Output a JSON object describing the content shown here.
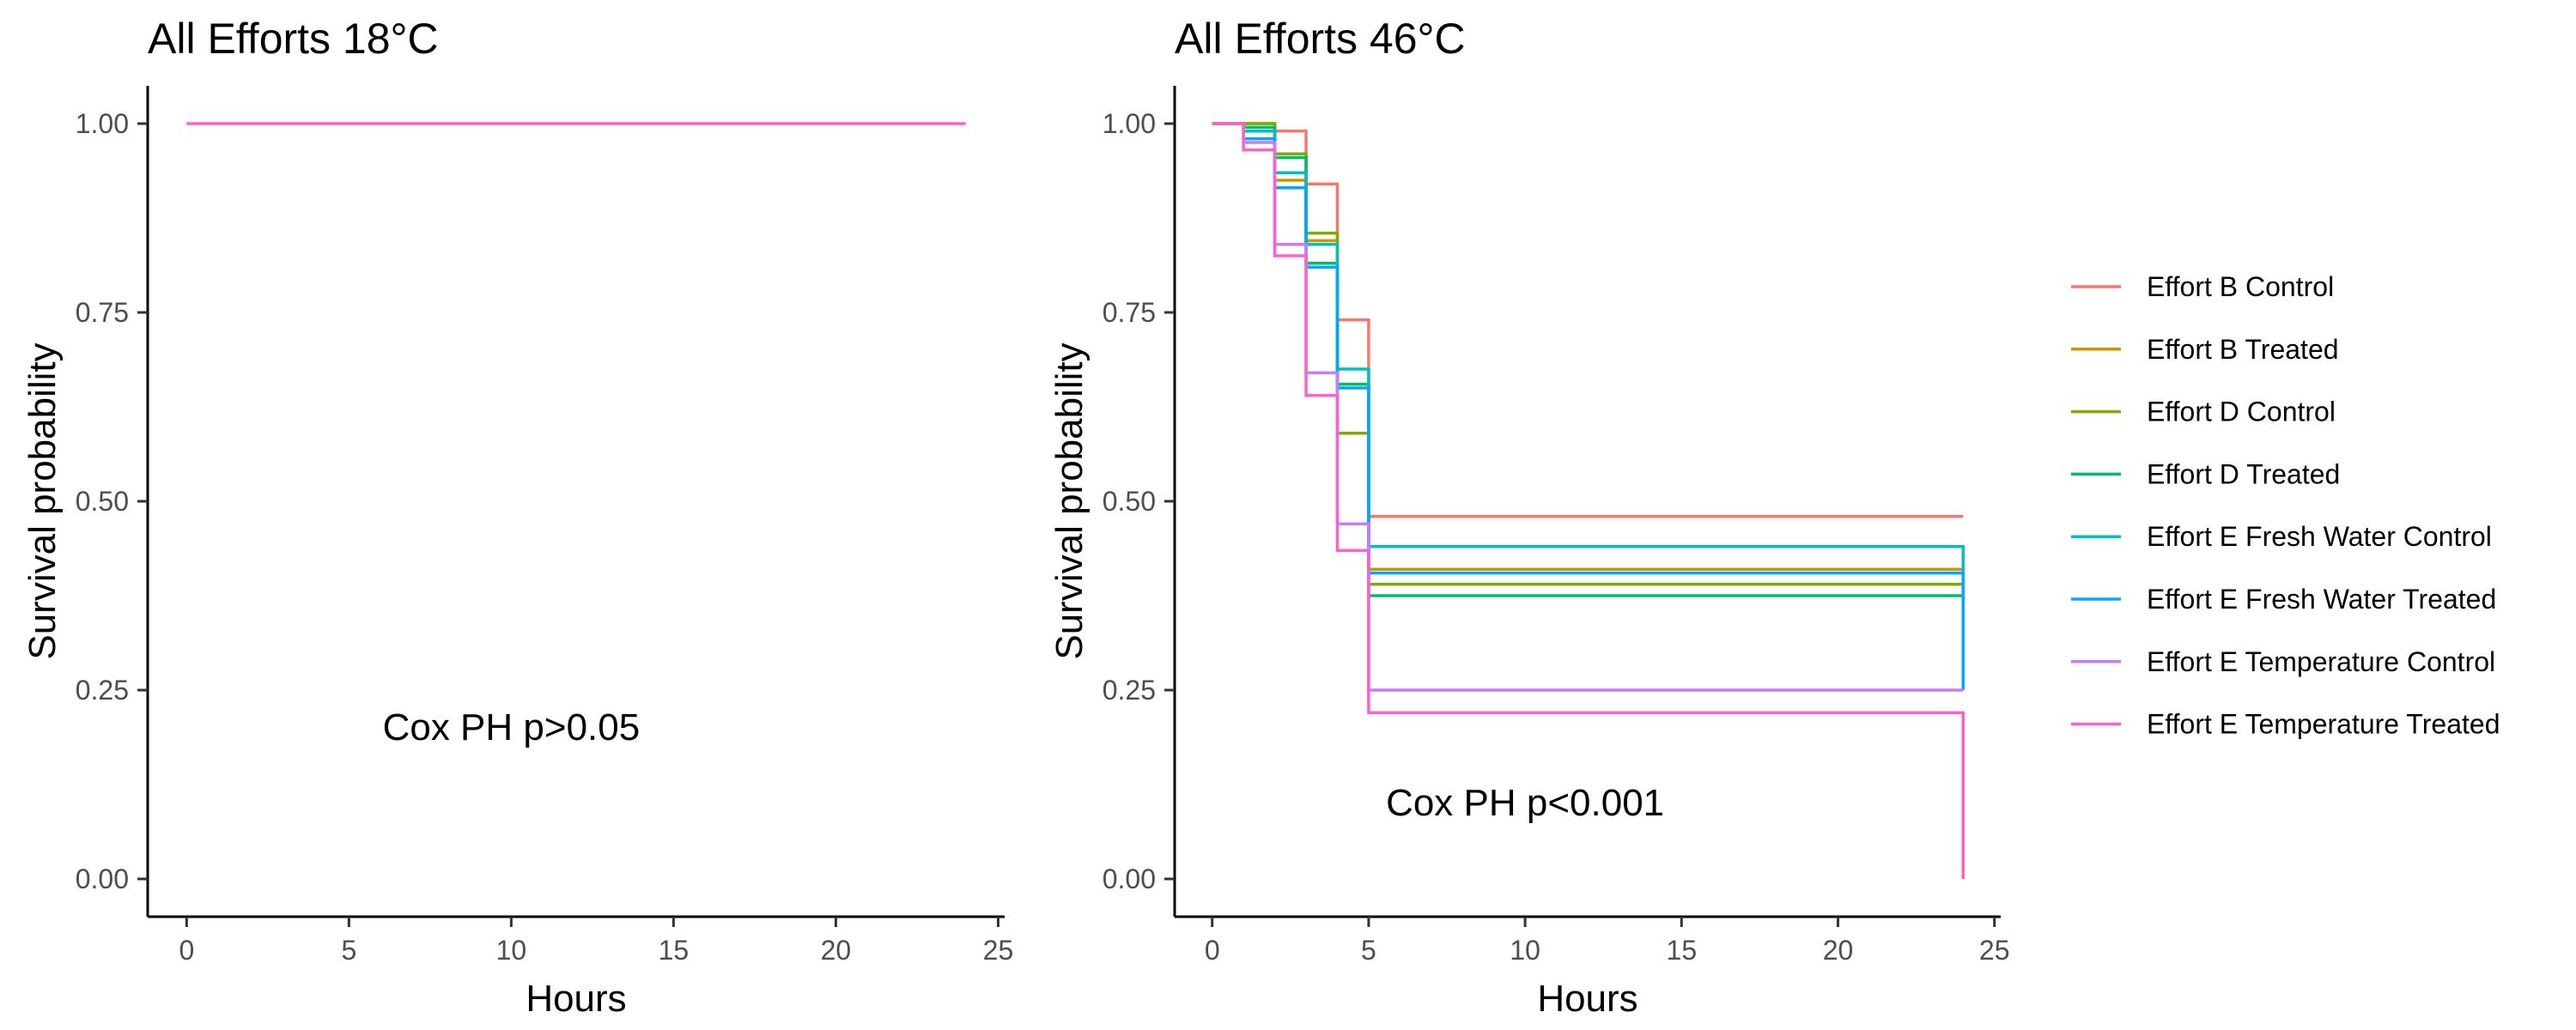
{
  "chart_data": [
    {
      "type": "line",
      "title": "All Efforts 18°C",
      "xlabel": "Hours",
      "ylabel": "Survival probability",
      "xlim": [
        -1.2,
        25.2
      ],
      "ylim": [
        -0.05,
        1.05
      ],
      "x_ticks": [
        0,
        5,
        10,
        15,
        20,
        25
      ],
      "y_ticks": [
        0.0,
        0.25,
        0.5,
        0.75,
        1.0
      ],
      "annotation": "Cox PH p>0.05",
      "annotation_pos": [
        10,
        0.2
      ],
      "grid": false,
      "series": [
        {
          "color": "#FF61CC",
          "x": [
            0,
            24
          ],
          "y": [
            1.0,
            1.0
          ]
        }
      ]
    },
    {
      "type": "line",
      "title": "All Efforts 46°C",
      "xlabel": "Hours",
      "ylabel": "Survival probability",
      "xlim": [
        -1.2,
        25.2
      ],
      "ylim": [
        -0.05,
        1.05
      ],
      "x_ticks": [
        0,
        5,
        10,
        15,
        20,
        25
      ],
      "y_ticks": [
        0.0,
        0.25,
        0.5,
        0.75,
        1.0
      ],
      "annotation": "Cox PH p<0.001",
      "annotation_pos": [
        10,
        0.1
      ],
      "grid": false,
      "legend_position": "right",
      "series": [
        {
          "name": "Effort B Control",
          "color": "#F8766D",
          "x": [
            0,
            1,
            2,
            3,
            4,
            5,
            24
          ],
          "y": [
            1.0,
            1.0,
            0.99,
            0.92,
            0.74,
            0.48,
            0.48
          ]
        },
        {
          "name": "Effort B Treated",
          "color": "#CD9600",
          "x": [
            0,
            1,
            2,
            3,
            4,
            5,
            24
          ],
          "y": [
            1.0,
            1.0,
            0.925,
            0.845,
            0.655,
            0.41,
            0.41
          ]
        },
        {
          "name": "Effort D Control",
          "color": "#7CAE00",
          "x": [
            0,
            1,
            2,
            3,
            4,
            5,
            24
          ],
          "y": [
            1.0,
            1.0,
            0.96,
            0.855,
            0.59,
            0.39,
            0.39
          ]
        },
        {
          "name": "Effort D Treated",
          "color": "#00BE67",
          "x": [
            0,
            1,
            2,
            3,
            4,
            5,
            24
          ],
          "y": [
            1.0,
            0.995,
            0.955,
            0.815,
            0.655,
            0.375,
            0.375
          ]
        },
        {
          "name": "Effort E Fresh Water Control",
          "color": "#00BFC4",
          "x": [
            0,
            1,
            2,
            3,
            4,
            5,
            24
          ],
          "y": [
            1.0,
            0.99,
            0.935,
            0.84,
            0.675,
            0.44,
            0.25
          ]
        },
        {
          "name": "Effort E Fresh Water Treated",
          "color": "#00A9FF",
          "x": [
            0,
            1,
            2,
            3,
            4,
            5,
            24
          ],
          "y": [
            1.0,
            0.98,
            0.915,
            0.81,
            0.65,
            0.405,
            0.25
          ]
        },
        {
          "name": "Effort E Temperature Control",
          "color": "#C77CFF",
          "x": [
            0,
            1,
            2,
            3,
            4,
            5,
            24
          ],
          "y": [
            1.0,
            0.975,
            0.84,
            0.67,
            0.47,
            0.25,
            0.25
          ]
        },
        {
          "name": "Effort E Temperature Treated",
          "color": "#FF61CC",
          "x": [
            0,
            1,
            2,
            3,
            4,
            5,
            24
          ],
          "y": [
            1.0,
            0.965,
            0.825,
            0.64,
            0.435,
            0.22,
            0.0
          ]
        }
      ]
    }
  ]
}
